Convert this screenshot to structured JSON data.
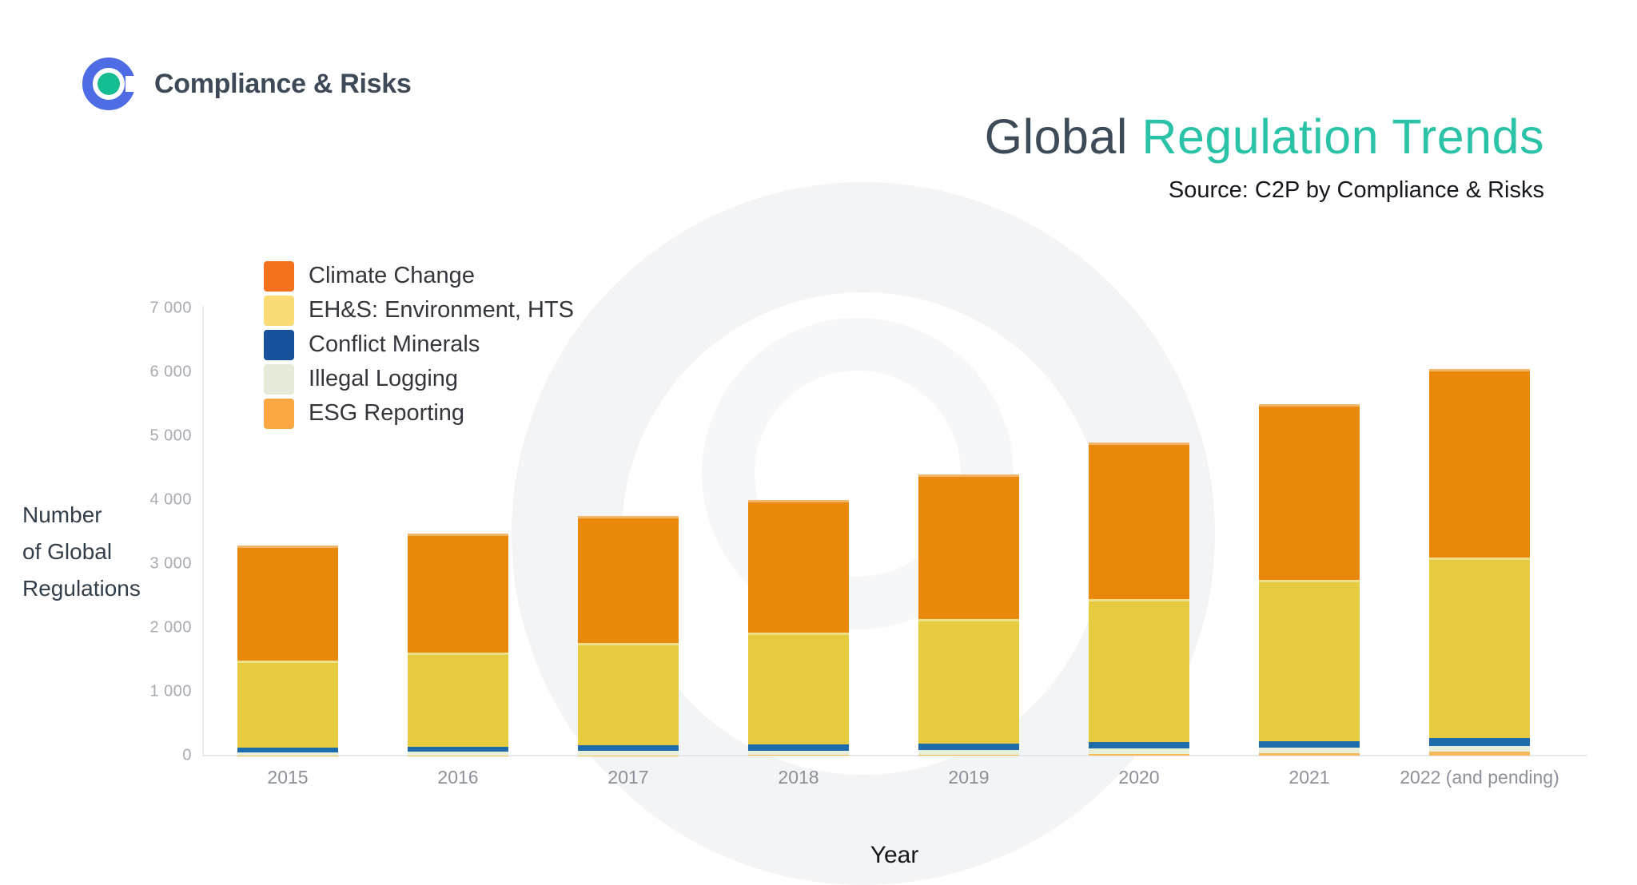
{
  "brand": {
    "name": "Compliance & Risks"
  },
  "title": {
    "prefix": "Global ",
    "highlight": "Regulation Trends"
  },
  "source_line": "Source: C2P by Compliance & Risks",
  "colors": {
    "title_text": "#3D4A57",
    "title_highlight": "#2BC3A8",
    "logo_blue": "#4E6CE4",
    "logo_teal": "#14BD92",
    "axis_text": "#A6ABB1",
    "x_label_text": "#8C9199"
  },
  "y_axis": {
    "title_lines": [
      "Number",
      "of Global",
      "Regulations"
    ],
    "ticks": [
      "7 000",
      "6 000",
      "5 000",
      "4 000",
      "3 000",
      "2 000",
      "1 000",
      "0"
    ]
  },
  "x_axis": {
    "title": "Year"
  },
  "chart_data": {
    "type": "bar",
    "stacked": true,
    "title": "Global Regulation Trends",
    "subtitle": "Source: C2P by Compliance & Risks",
    "categories": [
      "2015",
      "2016",
      "2017",
      "2018",
      "2019",
      "2020",
      "2021",
      "2022 (and pending)"
    ],
    "series": [
      {
        "id": "climate-change",
        "name": "Climate Change",
        "color_legend": "#F4711F",
        "color_bar": "#E8890B",
        "values": [
          1800,
          1860,
          1985,
          2075,
          2260,
          2450,
          2750,
          2950
        ]
      },
      {
        "id": "ehs-environment",
        "name": "EH&S: Environment, HTS",
        "color_legend": "#FBDB75",
        "color_bar": "#E6CB41",
        "values": [
          1365,
          1475,
          1600,
          1755,
          1955,
          2235,
          2520,
          2820
        ]
      },
      {
        "id": "conflict-minerals",
        "name": "Conflict Minerals",
        "color_legend": "#17509B",
        "color_bar": "#1E6CAC",
        "values": [
          75,
          80,
          90,
          90,
          95,
          100,
          105,
          130
        ]
      },
      {
        "id": "illegal-logging",
        "name": "Illegal Logging",
        "color_legend": "#E4ECD9",
        "color_bar": "#E9F0DA",
        "values": [
          45,
          55,
          70,
          70,
          80,
          85,
          85,
          90
        ]
      },
      {
        "id": "esg-reporting",
        "name": "ESG Reporting",
        "color_legend": "#F9A643",
        "color_bar": "#F5B95A",
        "values": [
          5,
          5,
          5,
          10,
          10,
          30,
          40,
          60
        ]
      }
    ],
    "stack_order_bottom_to_top": [
      4,
      3,
      2,
      1,
      0
    ],
    "approx_totals": [
      3290,
      3475,
      3750,
      4000,
      4400,
      4900,
      5500,
      6050
    ],
    "xlabel": "Year",
    "ylabel": "Number of Global Regulations",
    "ylim": [
      0,
      7000
    ],
    "ytick_step": 1000,
    "grid": false,
    "legend_position": "top-left-inside"
  }
}
